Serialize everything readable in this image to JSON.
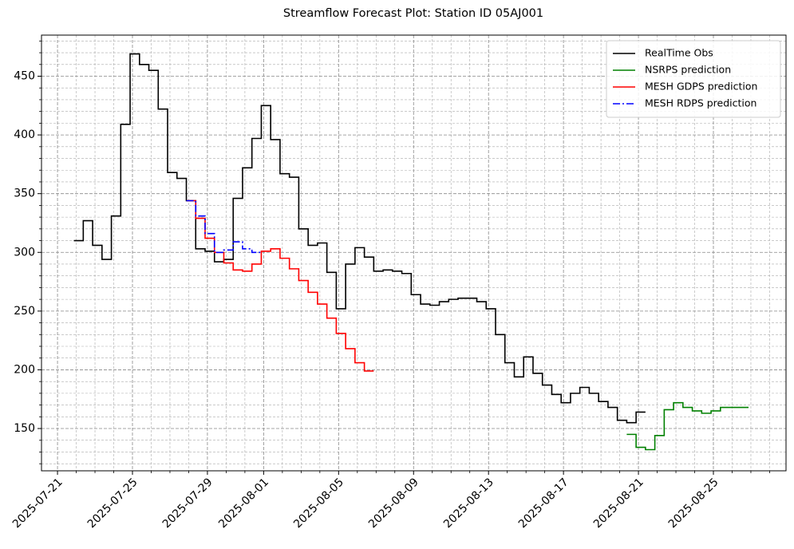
{
  "chart_data": {
    "type": "step",
    "title": "Streamflow Forecast Plot: Station ID 05AJ001",
    "xlim": [
      "2025-07-20 03:30",
      "2025-08-28 21:00"
    ],
    "ylim": [
      114,
      485
    ],
    "xticks": [
      "2025-07-21",
      "2025-07-25",
      "2025-07-29",
      "2025-08-01",
      "2025-08-05",
      "2025-08-09",
      "2025-08-13",
      "2025-08-17",
      "2025-08-21",
      "2025-08-25"
    ],
    "xminorticks": [
      "2025-07-22",
      "2025-07-23",
      "2025-07-24",
      "2025-07-26",
      "2025-07-27",
      "2025-07-28",
      "2025-07-30",
      "2025-07-31",
      "2025-08-02",
      "2025-08-03",
      "2025-08-04",
      "2025-08-06",
      "2025-08-07",
      "2025-08-08",
      "2025-08-10",
      "2025-08-11",
      "2025-08-12",
      "2025-08-14",
      "2025-08-15",
      "2025-08-16",
      "2025-08-18",
      "2025-08-19",
      "2025-08-20",
      "2025-08-22",
      "2025-08-23",
      "2025-08-24",
      "2025-08-26",
      "2025-08-27",
      "2025-08-28"
    ],
    "yticks": [
      150,
      200,
      250,
      300,
      350,
      400,
      450
    ],
    "yminorticks": [
      120,
      130,
      140,
      160,
      170,
      180,
      190,
      210,
      220,
      230,
      240,
      260,
      270,
      280,
      290,
      310,
      320,
      330,
      340,
      360,
      370,
      380,
      390,
      410,
      420,
      430,
      440,
      460,
      470,
      480
    ],
    "grid": true,
    "legend": "upper right",
    "series": [
      {
        "name": "RealTime Obs",
        "color": "#000000",
        "linestyle": "solid",
        "x": [
          "2025-07-21 21:00",
          "2025-07-22 09:00",
          "2025-07-22 21:00",
          "2025-07-23 09:00",
          "2025-07-23 21:00",
          "2025-07-24 09:00",
          "2025-07-24 21:00",
          "2025-07-25 09:00",
          "2025-07-25 21:00",
          "2025-07-26 09:00",
          "2025-07-26 21:00",
          "2025-07-27 09:00",
          "2025-07-27 21:00",
          "2025-07-28 09:00",
          "2025-07-28 21:00",
          "2025-07-29 09:00",
          "2025-07-29 21:00",
          "2025-07-30 09:00",
          "2025-07-30 21:00",
          "2025-07-31 09:00",
          "2025-07-31 21:00",
          "2025-08-01 09:00",
          "2025-08-01 21:00",
          "2025-08-02 09:00",
          "2025-08-02 21:00",
          "2025-08-03 09:00",
          "2025-08-03 21:00",
          "2025-08-04 09:00",
          "2025-08-04 21:00",
          "2025-08-05 09:00",
          "2025-08-05 21:00",
          "2025-08-06 09:00",
          "2025-08-06 21:00",
          "2025-08-07 09:00",
          "2025-08-07 21:00",
          "2025-08-08 09:00",
          "2025-08-08 21:00",
          "2025-08-09 09:00",
          "2025-08-09 21:00",
          "2025-08-10 09:00",
          "2025-08-10 21:00",
          "2025-08-11 09:00",
          "2025-08-11 21:00",
          "2025-08-12 09:00",
          "2025-08-12 21:00",
          "2025-08-13 09:00",
          "2025-08-13 21:00",
          "2025-08-14 09:00",
          "2025-08-14 21:00",
          "2025-08-15 09:00",
          "2025-08-15 21:00",
          "2025-08-16 09:00",
          "2025-08-16 21:00",
          "2025-08-17 09:00",
          "2025-08-17 21:00",
          "2025-08-18 09:00",
          "2025-08-18 21:00",
          "2025-08-19 09:00",
          "2025-08-19 21:00",
          "2025-08-20 09:00",
          "2025-08-20 21:00",
          "2025-08-21 09:00"
        ],
        "values": [
          310,
          327,
          306,
          294,
          331,
          409,
          469,
          460,
          455,
          422,
          368,
          363,
          344,
          303,
          301,
          292,
          294,
          346,
          372,
          397,
          425,
          396,
          367,
          364,
          320,
          306,
          308,
          283,
          252,
          290,
          304,
          296,
          284,
          285,
          284,
          282,
          264,
          256,
          255,
          258,
          260,
          261,
          261,
          258,
          252,
          230,
          206,
          194,
          211,
          197,
          187,
          179,
          172,
          180,
          185,
          180,
          173,
          168,
          157,
          155,
          164,
          164
        ]
      },
      {
        "name": "NSRPS prediction",
        "color": "#008000",
        "linestyle": "solid",
        "x": [
          "2025-08-20 09:00",
          "2025-08-20 21:00",
          "2025-08-21 09:00",
          "2025-08-21 21:00",
          "2025-08-22 09:00",
          "2025-08-22 21:00",
          "2025-08-23 09:00",
          "2025-08-23 21:00",
          "2025-08-24 09:00",
          "2025-08-24 21:00",
          "2025-08-25 09:00",
          "2025-08-25 21:00",
          "2025-08-26 09:00",
          "2025-08-26 21:00"
        ],
        "values": [
          145,
          134,
          132,
          144,
          166,
          172,
          168,
          165,
          163,
          165,
          168,
          168,
          168,
          168
        ]
      },
      {
        "name": "MESH GDPS prediction",
        "color": "#ff0000",
        "linestyle": "solid",
        "x": [
          "2025-07-27 21:00",
          "2025-07-28 09:00",
          "2025-07-28 21:00",
          "2025-07-29 09:00",
          "2025-07-29 21:00",
          "2025-07-30 09:00",
          "2025-07-30 21:00",
          "2025-07-31 09:00",
          "2025-07-31 21:00",
          "2025-08-01 09:00",
          "2025-08-01 21:00",
          "2025-08-02 09:00",
          "2025-08-02 21:00",
          "2025-08-03 09:00",
          "2025-08-03 21:00",
          "2025-08-04 09:00",
          "2025-08-04 21:00",
          "2025-08-05 09:00",
          "2025-08-05 21:00",
          "2025-08-06 09:00",
          "2025-08-06 21:00"
        ],
        "values": [
          344,
          329,
          312,
          300,
          291,
          285,
          284,
          290,
          301,
          303,
          295,
          286,
          276,
          266,
          256,
          244,
          231,
          218,
          206,
          199,
          199
        ]
      },
      {
        "name": "MESH RDPS prediction",
        "color": "#0000ff",
        "linestyle": "dashdot",
        "x": [
          "2025-07-27 21:00",
          "2025-07-28 09:00",
          "2025-07-28 21:00",
          "2025-07-29 09:00",
          "2025-07-29 21:00",
          "2025-07-30 09:00",
          "2025-07-30 21:00",
          "2025-07-31 09:00",
          "2025-07-31 21:00"
        ],
        "values": [
          344,
          331,
          316,
          300,
          302,
          309,
          303,
          300,
          300
        ]
      }
    ]
  }
}
